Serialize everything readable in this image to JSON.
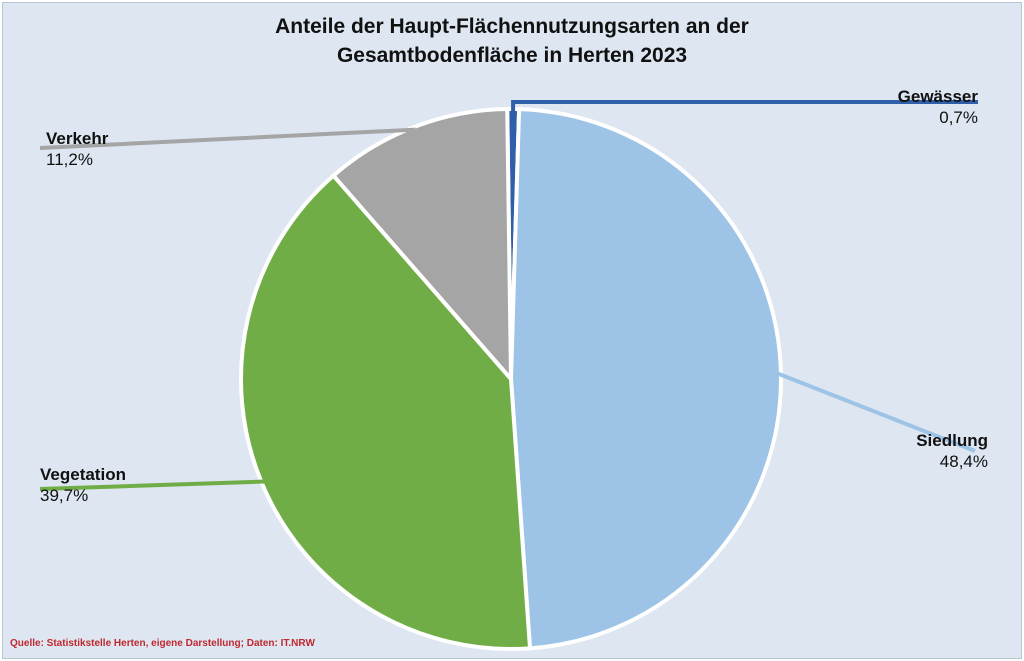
{
  "chart_data": {
    "type": "pie",
    "title_lines": [
      "Anteile der Haupt-Flächennutzungsarten an der",
      "Gesamtbodenfläche in Herten 2023"
    ],
    "slices": [
      {
        "name": "Gewässer",
        "value": 0.7,
        "label": "0,7%",
        "color": "#2e5fa8"
      },
      {
        "name": "Siedlung",
        "value": 48.4,
        "label": "48,4%",
        "color": "#9dc3e6"
      },
      {
        "name": "Vegetation",
        "value": 39.7,
        "label": "39,7%",
        "color": "#70ad47"
      },
      {
        "name": "Verkehr",
        "value": 11.2,
        "label": "11,2%",
        "color": "#a5a5a5"
      }
    ],
    "legend": "none",
    "source": "Quelle: Statistikstelle Herten, eigene Darstellung; Daten: IT.NRW"
  }
}
